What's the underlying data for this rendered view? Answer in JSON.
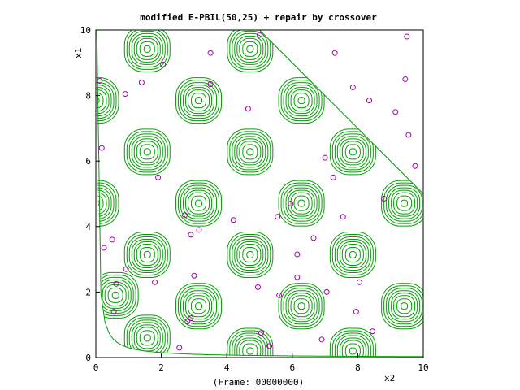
{
  "chart_data": {
    "type": "scatter",
    "title": "modified E-PBIL(50,25) + repair by crossover",
    "footer": "(Frame: 00000000)",
    "xlabel": "x2",
    "ylabel": "x1",
    "xlim": [
      0,
      10
    ],
    "ylim": [
      0,
      10
    ],
    "x_ticks": [
      0,
      2,
      4,
      6,
      8,
      10
    ],
    "y_ticks": [
      0,
      2,
      4,
      6,
      8,
      10
    ],
    "x_tick_labels": [
      "0",
      "2",
      "4",
      "6",
      "8",
      "10"
    ],
    "y_tick_labels": [
      "0",
      "2",
      "4",
      "6",
      "8",
      "10"
    ],
    "grid": false,
    "contour_color": "#00a000",
    "point_color": "#a000a0",
    "contour_centers": [
      [
        1.57,
        9.42
      ],
      [
        4.71,
        9.42
      ],
      [
        0.0,
        7.85
      ],
      [
        3.14,
        7.85
      ],
      [
        6.28,
        7.85
      ],
      [
        1.57,
        6.28
      ],
      [
        4.71,
        6.28
      ],
      [
        7.85,
        6.28
      ],
      [
        0.0,
        4.71
      ],
      [
        3.14,
        4.71
      ],
      [
        6.28,
        4.71
      ],
      [
        9.42,
        4.71
      ],
      [
        1.57,
        3.14
      ],
      [
        4.71,
        3.14
      ],
      [
        7.85,
        3.14
      ],
      [
        0.6,
        1.9
      ],
      [
        3.14,
        1.57
      ],
      [
        6.28,
        1.57
      ],
      [
        9.42,
        1.57
      ],
      [
        1.57,
        0.6
      ],
      [
        4.71,
        0.2
      ],
      [
        7.85,
        0.2
      ]
    ],
    "points": [
      {
        "x": 0.12,
        "y": 8.45
      },
      {
        "x": 0.18,
        "y": 6.4
      },
      {
        "x": 0.25,
        "y": 3.35
      },
      {
        "x": 0.5,
        "y": 3.6
      },
      {
        "x": 0.62,
        "y": 2.25
      },
      {
        "x": 0.55,
        "y": 1.4
      },
      {
        "x": 0.9,
        "y": 8.05
      },
      {
        "x": 0.92,
        "y": 2.7
      },
      {
        "x": 1.4,
        "y": 8.4
      },
      {
        "x": 1.8,
        "y": 2.3
      },
      {
        "x": 1.9,
        "y": 5.5
      },
      {
        "x": 2.05,
        "y": 8.95
      },
      {
        "x": 2.55,
        "y": 0.3
      },
      {
        "x": 2.72,
        "y": 4.35
      },
      {
        "x": 2.8,
        "y": 1.1
      },
      {
        "x": 2.9,
        "y": 1.2
      },
      {
        "x": 2.9,
        "y": 3.75
      },
      {
        "x": 3.0,
        "y": 2.5
      },
      {
        "x": 3.15,
        "y": 3.9
      },
      {
        "x": 3.5,
        "y": 9.3
      },
      {
        "x": 3.5,
        "y": 8.35
      },
      {
        "x": 4.2,
        "y": 4.2
      },
      {
        "x": 4.65,
        "y": 7.6
      },
      {
        "x": 4.95,
        "y": 2.15
      },
      {
        "x": 5.0,
        "y": 9.85
      },
      {
        "x": 5.05,
        "y": 0.75
      },
      {
        "x": 5.3,
        "y": 0.35
      },
      {
        "x": 5.55,
        "y": 4.3
      },
      {
        "x": 5.6,
        "y": 1.9
      },
      {
        "x": 5.95,
        "y": 4.7
      },
      {
        "x": 6.15,
        "y": 2.45
      },
      {
        "x": 6.15,
        "y": 3.15
      },
      {
        "x": 6.65,
        "y": 3.65
      },
      {
        "x": 6.9,
        "y": 0.55
      },
      {
        "x": 7.0,
        "y": 6.1
      },
      {
        "x": 7.05,
        "y": 2.0
      },
      {
        "x": 7.25,
        "y": 5.5
      },
      {
        "x": 7.3,
        "y": 9.3
      },
      {
        "x": 7.55,
        "y": 4.3
      },
      {
        "x": 7.85,
        "y": 8.25
      },
      {
        "x": 7.95,
        "y": 1.4
      },
      {
        "x": 8.05,
        "y": 2.3
      },
      {
        "x": 8.35,
        "y": 7.85
      },
      {
        "x": 8.45,
        "y": 0.8
      },
      {
        "x": 8.8,
        "y": 4.85
      },
      {
        "x": 9.15,
        "y": 7.5
      },
      {
        "x": 9.45,
        "y": 8.5
      },
      {
        "x": 9.5,
        "y": 9.8
      },
      {
        "x": 9.55,
        "y": 6.8
      },
      {
        "x": 9.75,
        "y": 5.85
      }
    ]
  }
}
